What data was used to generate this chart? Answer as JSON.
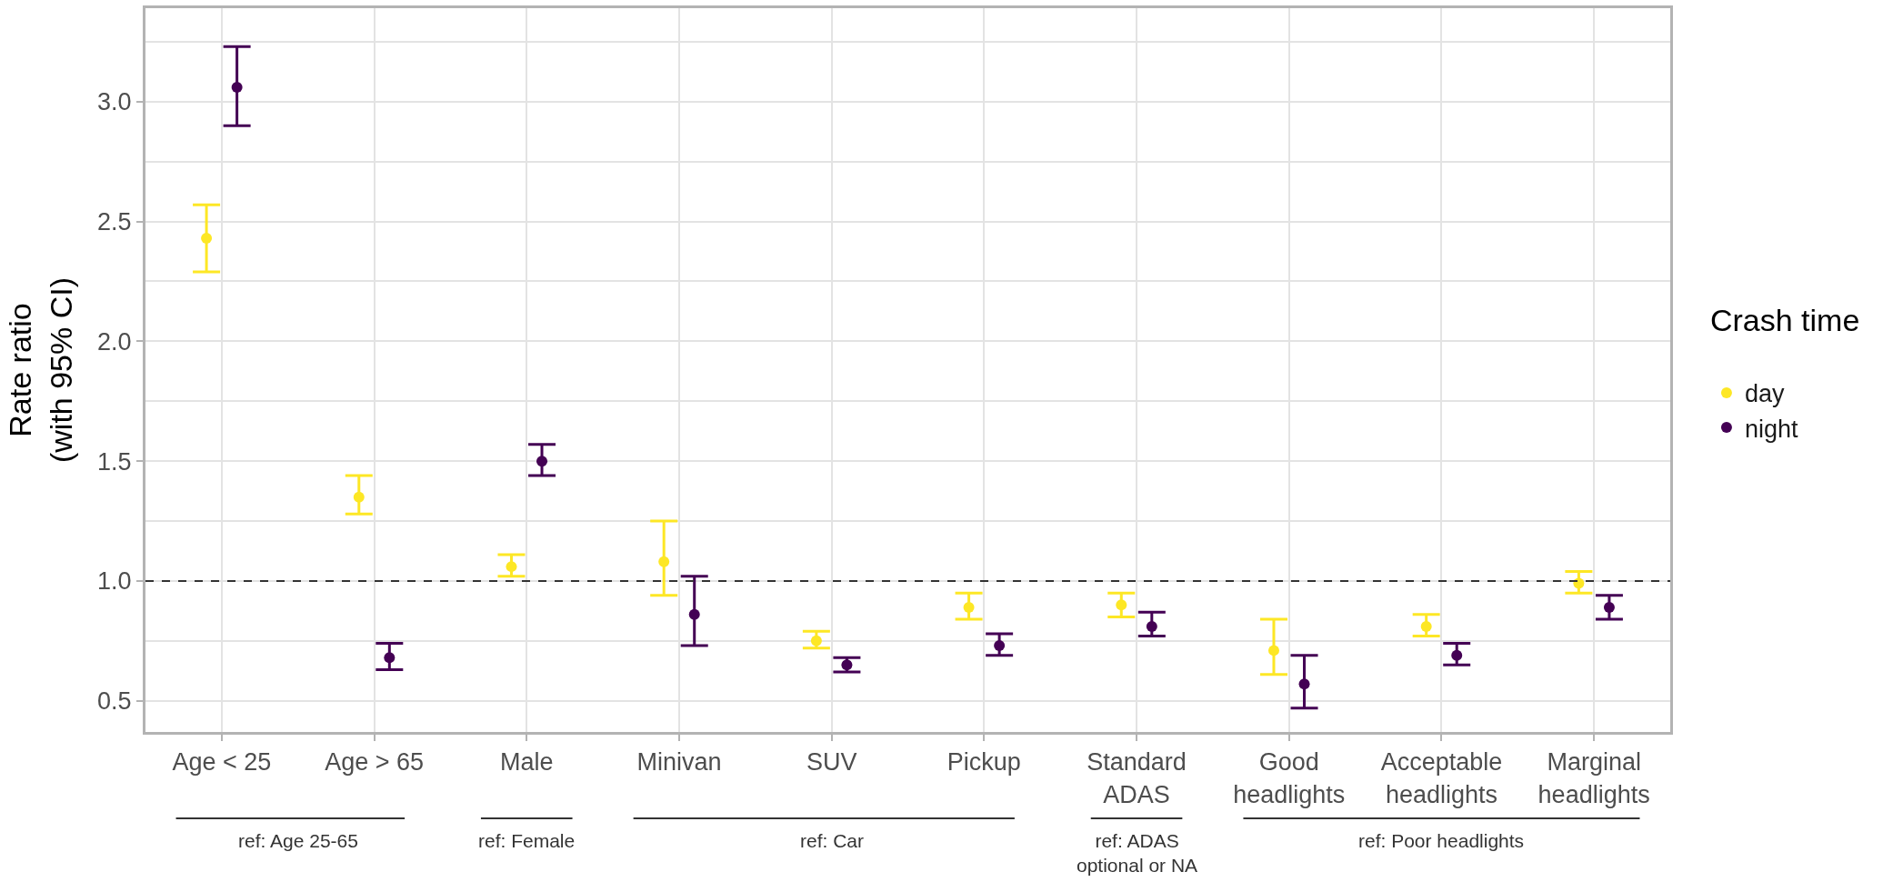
{
  "chart_data": {
    "type": "scatter",
    "ylabel": "Rate ratio\n(with 95% CI)",
    "legend_title": "Crash time",
    "categories": [
      "Age < 25",
      "Age > 65",
      "Male",
      "Minivan",
      "SUV",
      "Pickup",
      "Standard\nADAS",
      "Good\nheadlights",
      "Acceptable\nheadlights",
      "Marginal\nheadlights"
    ],
    "series": [
      {
        "name": "day",
        "color": "#fde725",
        "values": [
          2.43,
          1.35,
          1.06,
          1.08,
          0.75,
          0.89,
          0.9,
          0.71,
          0.81,
          0.99
        ],
        "errors": [
          [
            2.29,
            2.57
          ],
          [
            1.28,
            1.44
          ],
          [
            1.02,
            1.11
          ],
          [
            0.94,
            1.25
          ],
          [
            0.72,
            0.79
          ],
          [
            0.84,
            0.95
          ],
          [
            0.85,
            0.95
          ],
          [
            0.61,
            0.84
          ],
          [
            0.77,
            0.86
          ],
          [
            0.95,
            1.04
          ]
        ]
      },
      {
        "name": "night",
        "color": "#440154",
        "values": [
          3.06,
          0.68,
          1.5,
          0.86,
          0.65,
          0.73,
          0.81,
          0.57,
          0.69,
          0.89
        ],
        "errors": [
          [
            2.9,
            3.23
          ],
          [
            0.63,
            0.74
          ],
          [
            1.44,
            1.57
          ],
          [
            0.73,
            1.02
          ],
          [
            0.62,
            0.68
          ],
          [
            0.69,
            0.78
          ],
          [
            0.77,
            0.87
          ],
          [
            0.47,
            0.69
          ],
          [
            0.65,
            0.74
          ],
          [
            0.84,
            0.94
          ]
        ]
      }
    ],
    "ylim": [
      0.37,
      3.39
    ],
    "yticks": [
      0.5,
      {
        "value": 0.75,
        "label": null
      },
      {
        "value": 1,
        "label": "1.0"
      },
      {
        "value": 1.25,
        "label": null
      },
      1.5,
      {
        "value": 1.75,
        "label": null
      },
      {
        "value": 2,
        "label": "2.0"
      },
      {
        "value": 2.25,
        "label": null
      },
      2.5,
      {
        "value": 2.75,
        "label": null
      },
      {
        "value": 3,
        "label": "3.0"
      },
      {
        "value": 3.25,
        "label": null
      }
    ],
    "grid": true,
    "legend": "right",
    "marker": "circle",
    "ref_lines": [
      {
        "axis": "y",
        "value": 1,
        "line_style": "dashed",
        "color": "#333333"
      }
    ],
    "annotations": [
      "ref: Age 25-65",
      "ref: Female",
      "ref: Car",
      "ref: ADAS\noptional or NA",
      "ref: Poor headlights"
    ]
  }
}
